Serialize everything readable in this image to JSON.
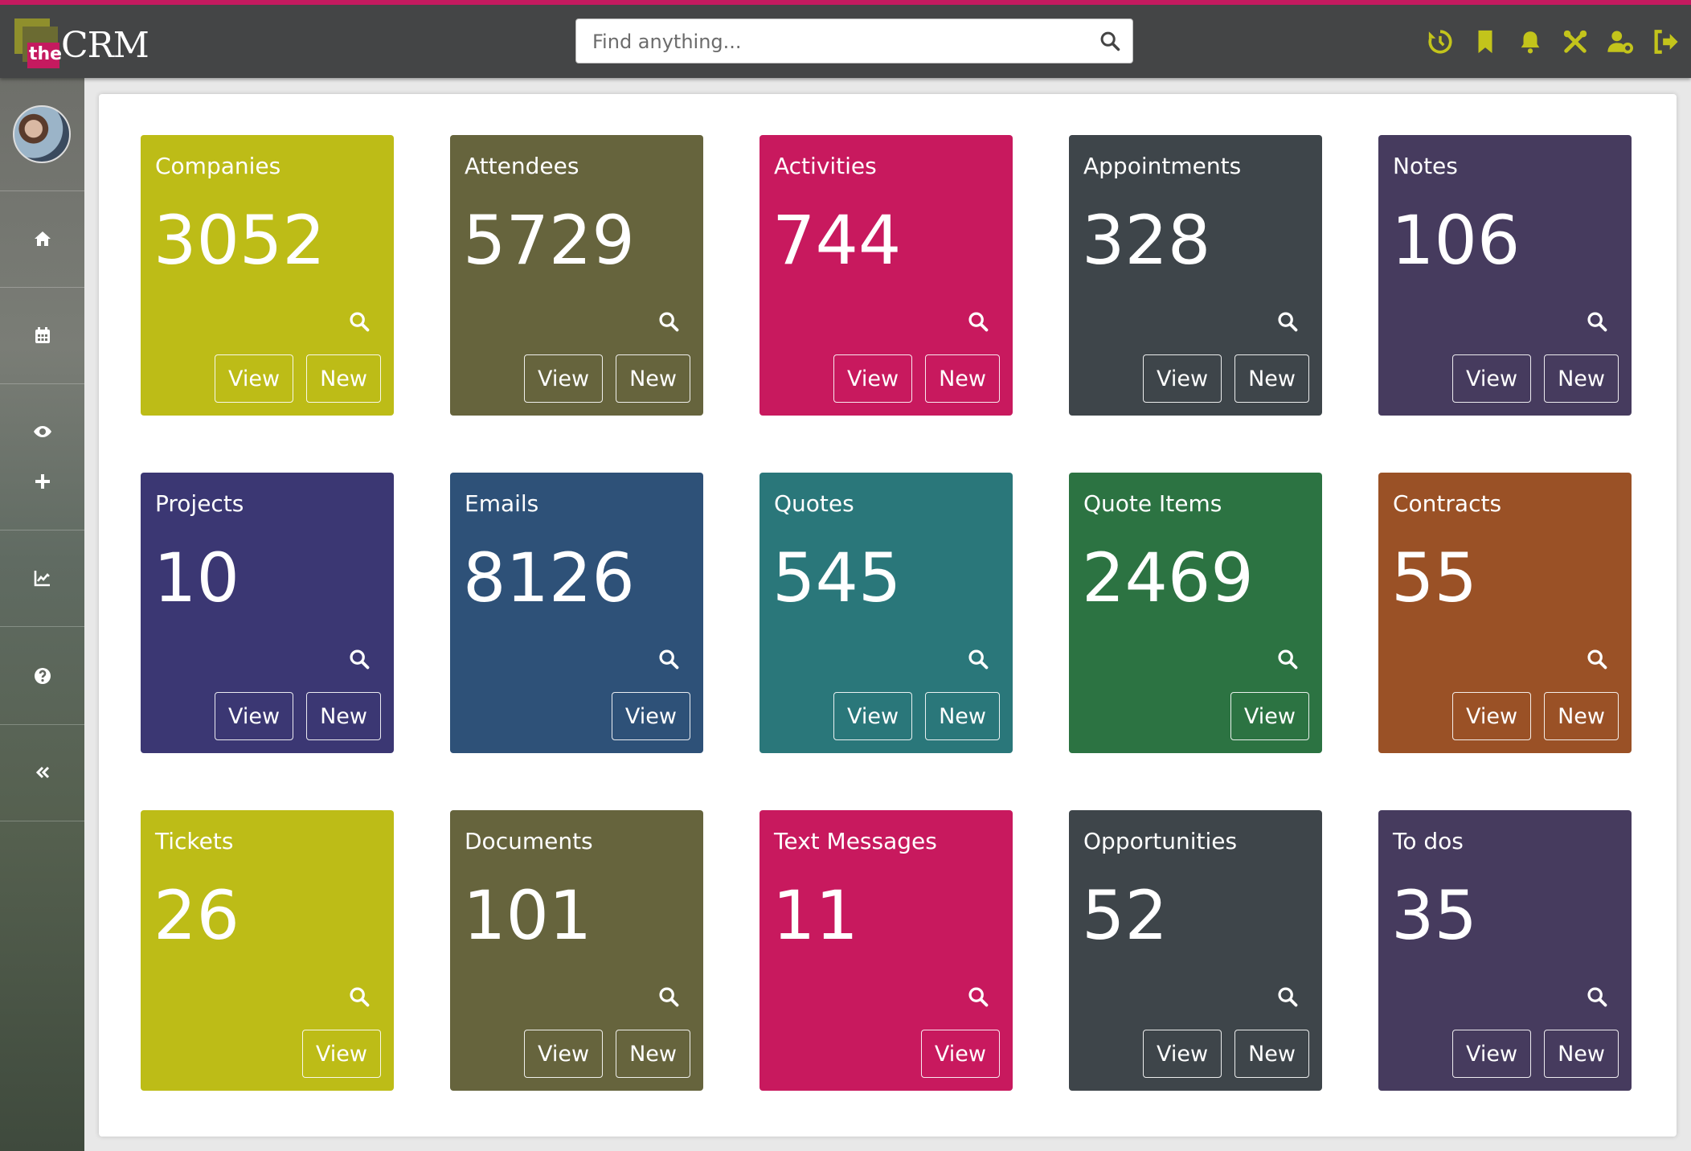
{
  "brand": {
    "prefix": "the",
    "name": "CRM"
  },
  "search": {
    "placeholder": "Find anything..."
  },
  "header_icons": [
    "history-icon",
    "bookmark-icon",
    "bell-icon",
    "tools-icon",
    "user-settings-icon",
    "logout-icon"
  ],
  "sidebar_icons": [
    "home-icon",
    "calendar-icon",
    "eye-icon",
    "plus-icon",
    "chart-icon",
    "help-icon",
    "collapse-icon"
  ],
  "colors": {
    "accent": "#c51a5f",
    "icon": "#c3c41b"
  },
  "tiles": [
    {
      "title": "Companies",
      "count": "3052",
      "view": "View",
      "new": "New",
      "color": "#bdbc17"
    },
    {
      "title": "Attendees",
      "count": "5729",
      "view": "View",
      "new": "New",
      "color": "#66643d"
    },
    {
      "title": "Activities",
      "count": "744",
      "view": "View",
      "new": "New",
      "color": "#c8195e"
    },
    {
      "title": "Appointments",
      "count": "328",
      "view": "View",
      "new": "New",
      "color": "#3e454a"
    },
    {
      "title": "Notes",
      "count": "106",
      "view": "View",
      "new": "New",
      "color": "#463b5e"
    },
    {
      "title": "Projects",
      "count": "10",
      "view": "View",
      "new": "New",
      "color": "#3b3773"
    },
    {
      "title": "Emails",
      "count": "8126",
      "view": "View",
      "new": "",
      "color": "#2e5178"
    },
    {
      "title": "Quotes",
      "count": "545",
      "view": "View",
      "new": "New",
      "color": "#2a777a"
    },
    {
      "title": "Quote Items",
      "count": "2469",
      "view": "View",
      "new": "",
      "color": "#2c7342"
    },
    {
      "title": "Contracts",
      "count": "55",
      "view": "View",
      "new": "New",
      "color": "#9a5126"
    },
    {
      "title": "Tickets",
      "count": "26",
      "view": "View",
      "new": "",
      "color": "#bdbc17"
    },
    {
      "title": "Documents",
      "count": "101",
      "view": "View",
      "new": "New",
      "color": "#66643d"
    },
    {
      "title": "Text Messages",
      "count": "11",
      "view": "View",
      "new": "",
      "color": "#c8195e"
    },
    {
      "title": "Opportunities",
      "count": "52",
      "view": "View",
      "new": "New",
      "color": "#3e454a"
    },
    {
      "title": "To dos",
      "count": "35",
      "view": "View",
      "new": "New",
      "color": "#463b5e"
    }
  ]
}
